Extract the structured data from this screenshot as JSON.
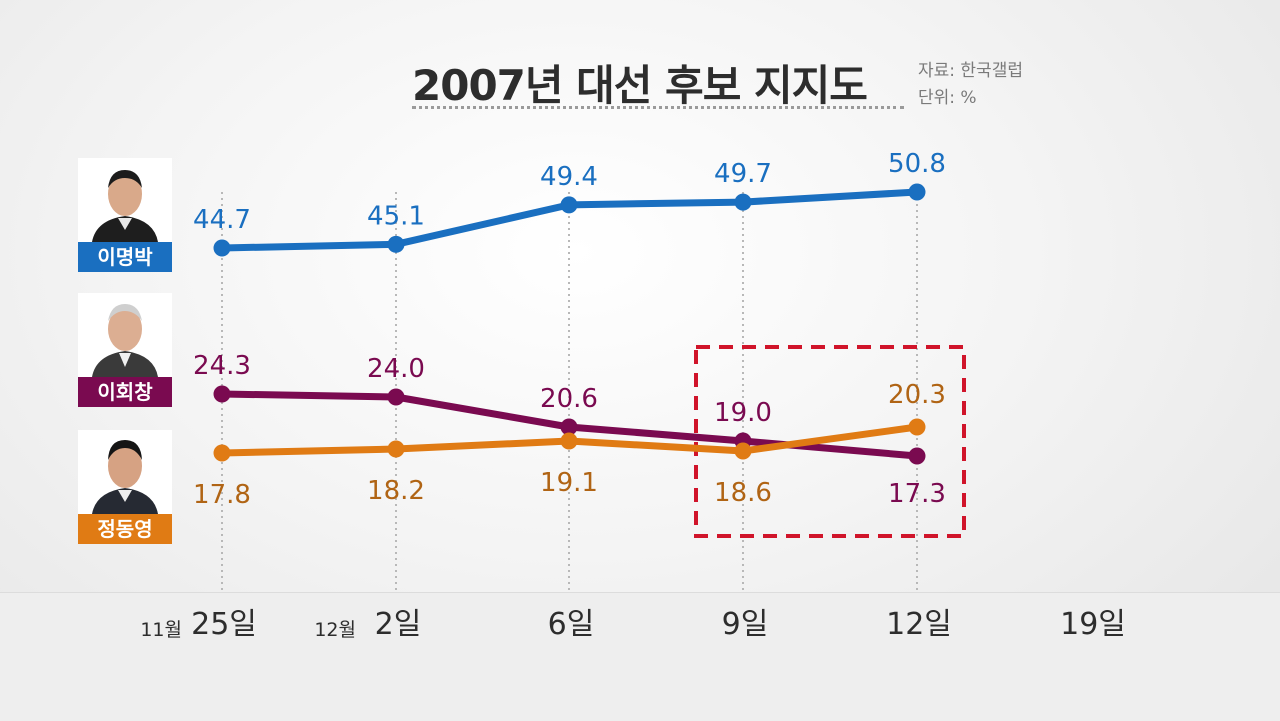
{
  "title": "2007년 대선 후보 지지도",
  "source": "자료: 한국갤럽",
  "unit": "단위: %",
  "candidates": [
    {
      "name": "이명박",
      "color": "#1a6fc0"
    },
    {
      "name": "이회창",
      "color": "#7a0a50"
    },
    {
      "name": "정동영",
      "color": "#e07b14"
    }
  ],
  "highlight_color": "#d0142a",
  "chart_data": {
    "type": "line",
    "title": "2007년 대선 후보 지지도",
    "unit": "%",
    "x": [
      "25일",
      "2일",
      "6일",
      "9일",
      "12일",
      "19일"
    ],
    "month_labels": [
      "11월",
      "12월",
      "",
      "",
      "",
      ""
    ],
    "series": [
      {
        "name": "이명박",
        "color": "#1a6fc0",
        "values": [
          44.7,
          45.1,
          49.4,
          49.7,
          50.8,
          null
        ]
      },
      {
        "name": "이회창",
        "color": "#7a0a50",
        "values": [
          24.3,
          24.0,
          20.6,
          19.0,
          17.3,
          null
        ]
      },
      {
        "name": "정동영",
        "color": "#e07b14",
        "values": [
          17.8,
          18.2,
          19.1,
          18.6,
          20.3,
          null
        ]
      }
    ],
    "label_color_orange": "#b06414"
  }
}
